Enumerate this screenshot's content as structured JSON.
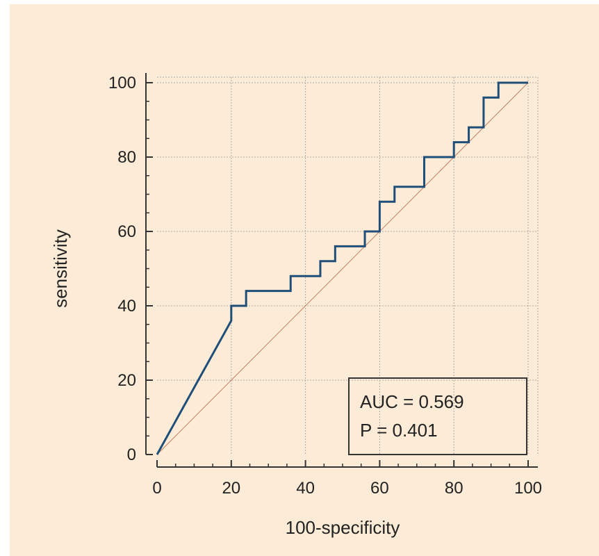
{
  "chart_data": {
    "type": "line",
    "title": "",
    "xlabel": "100-specificity",
    "ylabel": "sensitivity",
    "xlim": [
      0,
      100
    ],
    "ylim": [
      0,
      100
    ],
    "x_ticks": [
      0,
      20,
      40,
      60,
      80,
      100
    ],
    "y_ticks": [
      0,
      20,
      40,
      60,
      80,
      100
    ],
    "x_tick_labels": [
      "0",
      "20",
      "40",
      "60",
      "80",
      "100"
    ],
    "y_tick_labels": [
      "0",
      "20",
      "40",
      "60",
      "80",
      "100"
    ],
    "grid": true,
    "series": [
      {
        "color": "#1f4e79",
        "x": [
          0,
          20,
          20,
          24,
          24,
          36,
          36,
          44,
          44,
          48,
          48,
          56,
          56,
          60,
          60,
          64,
          64,
          72,
          72,
          80,
          80,
          84,
          84,
          88,
          88,
          92,
          92,
          100
        ],
        "y": [
          0,
          36,
          40,
          40,
          44,
          44,
          48,
          48,
          52,
          52,
          56,
          56,
          60,
          60,
          68,
          68,
          72,
          72,
          80,
          80,
          84,
          84,
          88,
          88,
          96,
          96,
          100,
          100
        ]
      }
    ],
    "reference_line": {
      "x": [
        0,
        100
      ],
      "y": [
        0,
        100
      ],
      "color": "#c08060"
    },
    "annotations": {
      "auc": "AUC = 0.569",
      "p": "P = 0.401"
    },
    "colors": {
      "background": "#fcebd6",
      "grid": "#aaaaaa",
      "axis": "#333333"
    }
  }
}
